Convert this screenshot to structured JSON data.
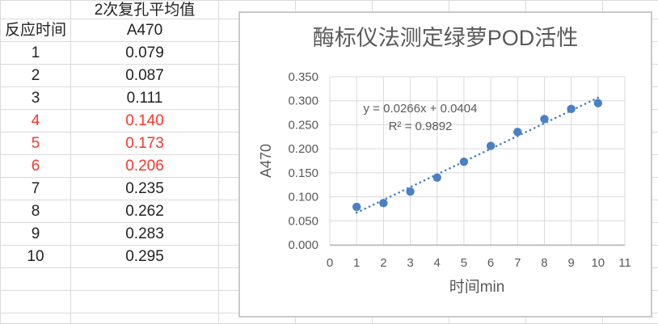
{
  "spreadsheet": {
    "merged_header": "2次复孔平均值",
    "col_time_header": "反应时间",
    "col_value_header": "A470",
    "rows": [
      {
        "time": "1",
        "a470": "0.079",
        "red": false
      },
      {
        "time": "2",
        "a470": "0.087",
        "red": false
      },
      {
        "time": "3",
        "a470": "0.111",
        "red": false
      },
      {
        "time": "4",
        "a470": "0.140",
        "red": true
      },
      {
        "time": "5",
        "a470": "0.173",
        "red": true
      },
      {
        "time": "6",
        "a470": "0.206",
        "red": true
      },
      {
        "time": "7",
        "a470": "0.235",
        "red": false
      },
      {
        "time": "8",
        "a470": "0.262",
        "red": false
      },
      {
        "time": "9",
        "a470": "0.283",
        "red": false
      },
      {
        "time": "10",
        "a470": "0.295",
        "red": false
      }
    ],
    "red_color": "#F8362C",
    "text_color": "#222222",
    "grid_color": "#DADADA"
  },
  "chart_data": {
    "type": "scatter",
    "title": "酶标仪法测定绿萝POD活性",
    "xlabel": "时间min",
    "ylabel": "A470",
    "x": [
      1,
      2,
      3,
      4,
      5,
      6,
      7,
      8,
      9,
      10
    ],
    "y": [
      0.079,
      0.087,
      0.111,
      0.14,
      0.173,
      0.206,
      0.235,
      0.262,
      0.283,
      0.295
    ],
    "xlim": [
      0,
      11
    ],
    "ylim": [
      0,
      0.35
    ],
    "xticks": [
      0,
      1,
      2,
      3,
      4,
      5,
      6,
      7,
      8,
      9,
      10,
      11
    ],
    "ytick_labels": [
      "0.000",
      "0.050",
      "0.100",
      "0.150",
      "0.200",
      "0.250",
      "0.300",
      "0.350"
    ],
    "grid": true,
    "legend": false,
    "trendline": {
      "slope": 0.0266,
      "intercept": 0.0404,
      "x_start": 1,
      "x_end": 10,
      "style": "dotted",
      "equation_label": "y = 0.0266x + 0.0404",
      "r2_label": "R² = 0.9892"
    },
    "colors": {
      "marker": "#4A80C4",
      "trend": "#4A80C4",
      "grid": "#D9D9D9",
      "axis": "#B3B3B3",
      "text": "#595959",
      "border": "#C9C9C9"
    }
  }
}
